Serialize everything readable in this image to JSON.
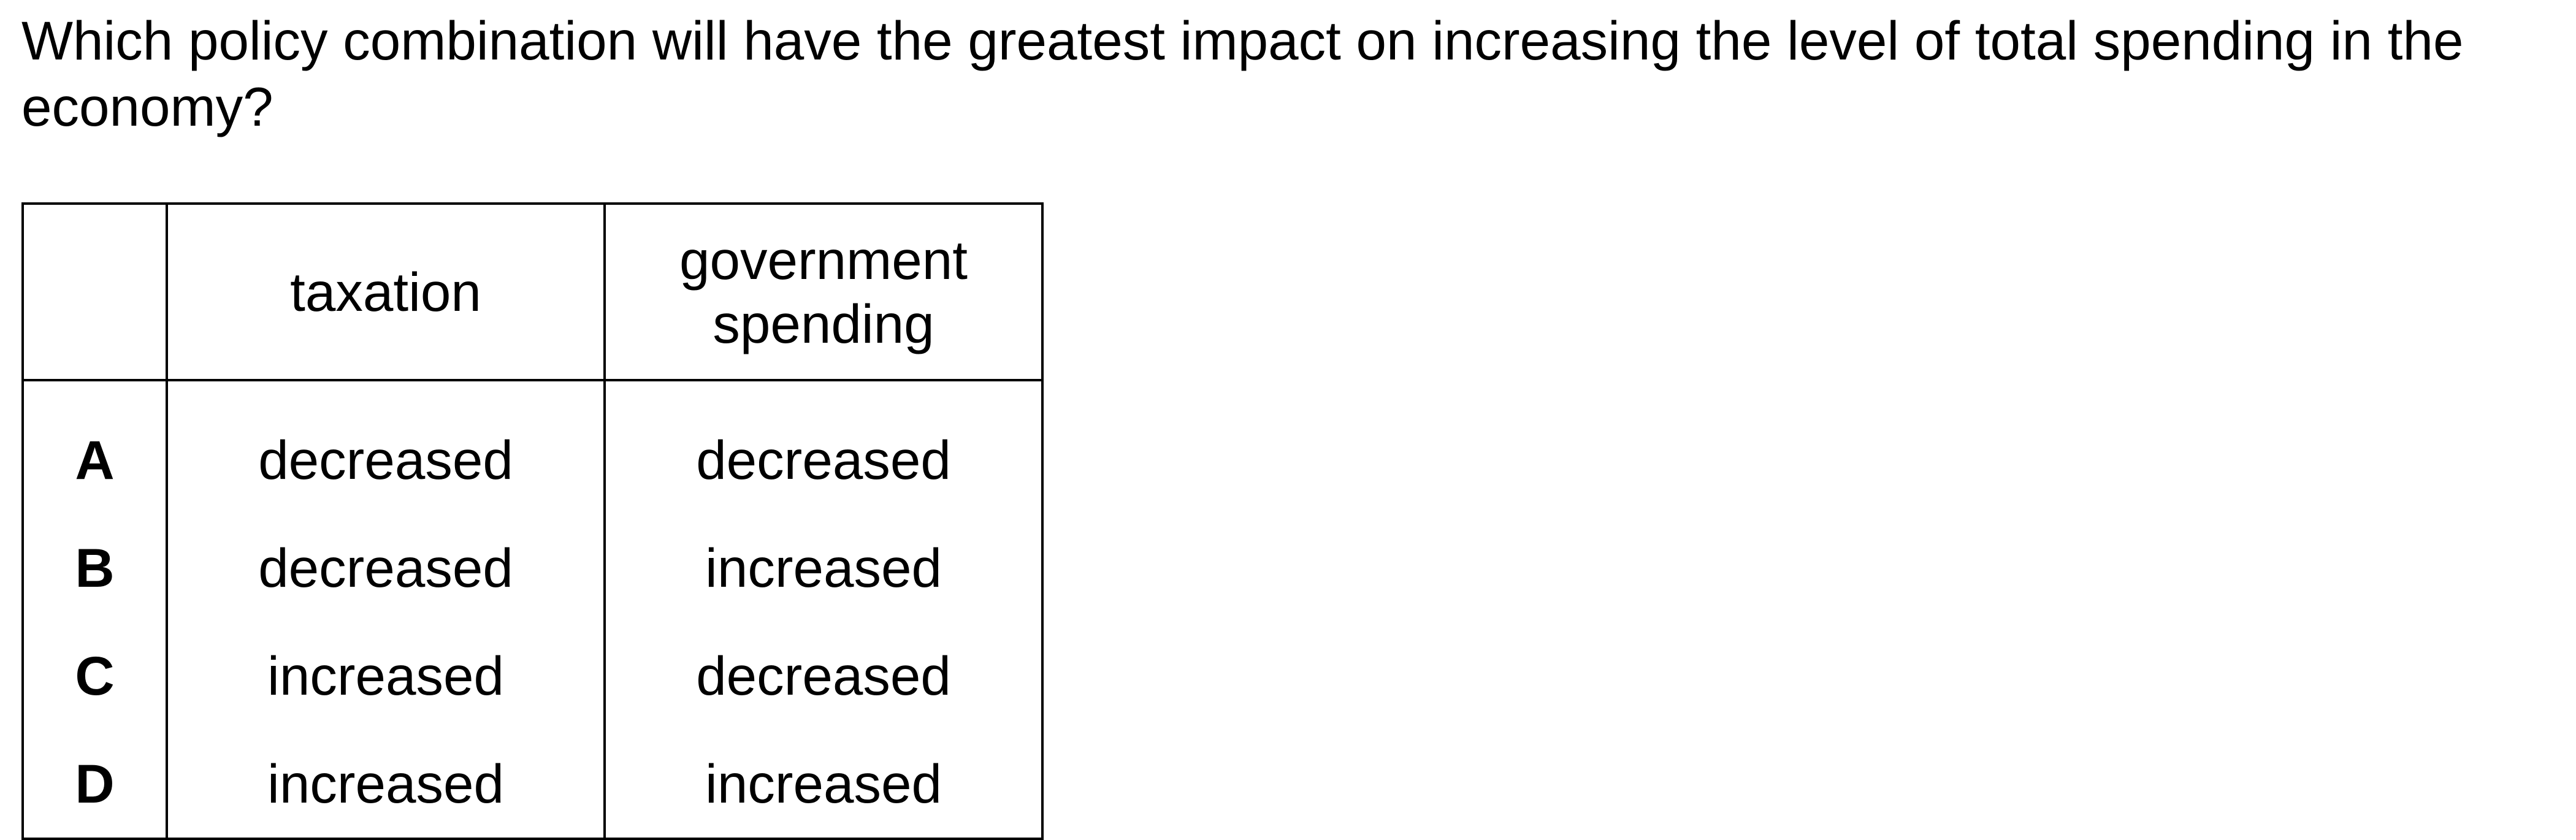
{
  "question": "Which policy combination will have the greatest impact on increasing the level of total spending in the economy?",
  "table": {
    "headers": {
      "option": "",
      "taxation": "taxation",
      "government_spending_line1": "government",
      "government_spending_line2": "spending"
    },
    "rows": [
      {
        "letter": "A",
        "taxation": "decreased",
        "government_spending": "decreased"
      },
      {
        "letter": "B",
        "taxation": "decreased",
        "government_spending": "increased"
      },
      {
        "letter": "C",
        "taxation": "increased",
        "government_spending": "decreased"
      },
      {
        "letter": "D",
        "taxation": "increased",
        "government_spending": "increased"
      }
    ]
  }
}
